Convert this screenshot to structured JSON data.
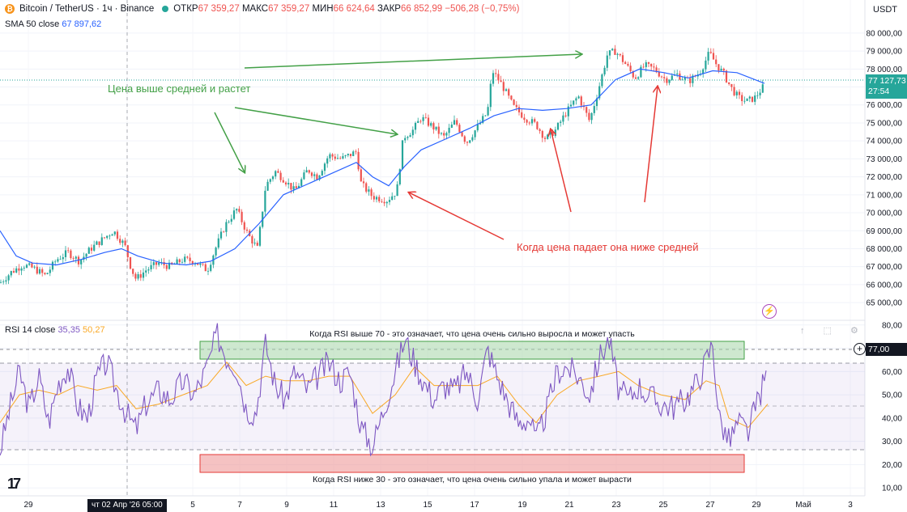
{
  "header": {
    "symbol": "Bitcoin / TetherUS · 1ч · Binance",
    "coin_icon": "bitcoin-icon",
    "open_label": "ОТКР",
    "open_value": "67 359,27",
    "high_label": "МАКС",
    "high_value": "67 359,27",
    "low_label": "МИН",
    "low_value": "66 624,64",
    "close_label": "ЗАКР",
    "close_value": "66 852,99",
    "change": "−506,28 (−0,75%)",
    "currency": "USDT"
  },
  "sma": {
    "label": "SMA 50 close",
    "value": "67 897,62"
  },
  "rsi": {
    "label": "RSI 14 close",
    "value": "35,35",
    "ma_value": "50,27"
  },
  "price_tag": {
    "price": "77 127,73",
    "countdown": "27:54"
  },
  "rsi_tag": "77,00",
  "cursor_date": "чт 02 Апр '26   05:00",
  "colors": {
    "up": "#26a69a",
    "down": "#ef5350",
    "sma": "#2962ff",
    "rsi": "#7e57c2",
    "rsi_ma": "#f9a825",
    "ann_green": "#43a047",
    "ann_red": "#e53935"
  },
  "annotations": {
    "green_text": "Цена выше средней и растет",
    "red_text": "Когда цена падает она ниже средней",
    "rsi_over": "Когда RSI выше 70 - это означает, что цена очень сильно выросла и может упасть",
    "rsi_under": "Когда RSI ниже 30 - это означает, что цена очень сильно упала и может вырасти"
  },
  "chart_data": [
    {
      "type": "candlestick",
      "ylim": [
        64600,
        80400
      ],
      "y_ticks": [
        "80 000,00",
        "79 000,00",
        "78 000,00",
        "77 000,00",
        "76 000,00",
        "75 000,00",
        "74 000,00",
        "73 000,00",
        "72 000,00",
        "71 000,00",
        "70 000,00",
        "69 000,00",
        "68 000,00",
        "67 000,00",
        "66 000,00",
        "65 000,00"
      ],
      "x_ticks": [
        "29",
        "чт 02 Апр '26   05:00",
        "5",
        "7",
        "9",
        "11",
        "13",
        "15",
        "17",
        "19",
        "21",
        "23",
        "25",
        "27",
        "29",
        "Май",
        "3"
      ],
      "close_path": [
        [
          0,
          66100
        ],
        [
          14,
          66700
        ],
        [
          28,
          67100
        ],
        [
          42,
          66900
        ],
        [
          56,
          66500
        ],
        [
          70,
          67400
        ],
        [
          84,
          67800
        ],
        [
          98,
          67300
        ],
        [
          112,
          68000
        ],
        [
          126,
          68500
        ],
        [
          140,
          69000
        ],
        [
          154,
          68200
        ],
        [
          162,
          66900
        ],
        [
          168,
          66300
        ],
        [
          180,
          66800
        ],
        [
          196,
          67200
        ],
        [
          210,
          67000
        ],
        [
          226,
          67400
        ],
        [
          240,
          67300
        ],
        [
          256,
          66800
        ],
        [
          266,
          68000
        ],
        [
          278,
          69300
        ],
        [
          292,
          70200
        ],
        [
          306,
          68800
        ],
        [
          318,
          68000
        ],
        [
          328,
          71500
        ],
        [
          340,
          72300
        ],
        [
          352,
          71800
        ],
        [
          364,
          71200
        ],
        [
          380,
          72400
        ],
        [
          392,
          72000
        ],
        [
          406,
          73200
        ],
        [
          422,
          73000
        ],
        [
          440,
          73400
        ],
        [
          446,
          71600
        ],
        [
          460,
          70900
        ],
        [
          478,
          70700
        ],
        [
          490,
          71200
        ],
        [
          498,
          74200
        ],
        [
          510,
          74600
        ],
        [
          520,
          75300
        ],
        [
          534,
          74800
        ],
        [
          548,
          74200
        ],
        [
          562,
          75100
        ],
        [
          576,
          73900
        ],
        [
          590,
          74800
        ],
        [
          602,
          75600
        ],
        [
          608,
          77900
        ],
        [
          620,
          77100
        ],
        [
          634,
          75900
        ],
        [
          648,
          75300
        ],
        [
          662,
          74900
        ],
        [
          674,
          74100
        ],
        [
          686,
          74600
        ],
        [
          698,
          75500
        ],
        [
          714,
          76500
        ],
        [
          728,
          75100
        ],
        [
          738,
          76700
        ],
        [
          750,
          78800
        ],
        [
          760,
          79000
        ],
        [
          772,
          78300
        ],
        [
          784,
          77500
        ],
        [
          796,
          78200
        ],
        [
          808,
          78000
        ],
        [
          822,
          77400
        ],
        [
          836,
          77700
        ],
        [
          850,
          77300
        ],
        [
          864,
          77800
        ],
        [
          876,
          78900
        ],
        [
          884,
          78300
        ],
        [
          894,
          77700
        ],
        [
          902,
          77000
        ],
        [
          912,
          76400
        ],
        [
          922,
          76200
        ],
        [
          932,
          76400
        ],
        [
          944,
          77100
        ]
      ],
      "sma_path": [
        [
          0,
          69000
        ],
        [
          20,
          67600
        ],
        [
          40,
          67200
        ],
        [
          70,
          67100
        ],
        [
          100,
          67400
        ],
        [
          130,
          67800
        ],
        [
          150,
          68000
        ],
        [
          170,
          67600
        ],
        [
          200,
          67200
        ],
        [
          230,
          67100
        ],
        [
          260,
          67300
        ],
        [
          290,
          68000
        ],
        [
          320,
          69400
        ],
        [
          350,
          71000
        ],
        [
          380,
          71600
        ],
        [
          410,
          72200
        ],
        [
          440,
          72800
        ],
        [
          460,
          72000
        ],
        [
          480,
          71500
        ],
        [
          500,
          72600
        ],
        [
          520,
          73500
        ],
        [
          550,
          74100
        ],
        [
          580,
          74700
        ],
        [
          610,
          75400
        ],
        [
          640,
          75800
        ],
        [
          670,
          75700
        ],
        [
          700,
          75800
        ],
        [
          730,
          76000
        ],
        [
          760,
          77400
        ],
        [
          790,
          78000
        ],
        [
          820,
          77800
        ],
        [
          850,
          77500
        ],
        [
          880,
          77900
        ],
        [
          910,
          77800
        ],
        [
          944,
          77200
        ]
      ],
      "series": [
        {
          "name": "SMA 50 close",
          "last": "67 897,62"
        }
      ]
    },
    {
      "type": "line",
      "ylim": [
        8,
        82
      ],
      "y_ticks": [
        "80,00",
        "70,00",
        "60,00",
        "50,00",
        "40,00",
        "30,00",
        "20,00",
        "10,00"
      ],
      "bands": {
        "upper": 70,
        "middle": 50,
        "lower": 30
      },
      "rsi_path": [
        [
          0,
          26
        ],
        [
          12,
          44
        ],
        [
          24,
          60
        ],
        [
          36,
          44
        ],
        [
          48,
          58
        ],
        [
          60,
          38
        ],
        [
          72,
          55
        ],
        [
          84,
          62
        ],
        [
          96,
          45
        ],
        [
          108,
          40
        ],
        [
          120,
          58
        ],
        [
          132,
          64
        ],
        [
          144,
          52
        ],
        [
          156,
          42
        ],
        [
          168,
          35
        ],
        [
          180,
          46
        ],
        [
          196,
          52
        ],
        [
          210,
          48
        ],
        [
          226,
          56
        ],
        [
          240,
          50
        ],
        [
          256,
          62
        ],
        [
          268,
          76
        ],
        [
          280,
          66
        ],
        [
          292,
          62
        ],
        [
          304,
          44
        ],
        [
          316,
          42
        ],
        [
          328,
          72
        ],
        [
          340,
          54
        ],
        [
          352,
          48
        ],
        [
          364,
          60
        ],
        [
          380,
          52
        ],
        [
          392,
          58
        ],
        [
          406,
          64
        ],
        [
          420,
          56
        ],
        [
          432,
          60
        ],
        [
          446,
          36
        ],
        [
          460,
          28
        ],
        [
          474,
          44
        ],
        [
          488,
          60
        ],
        [
          500,
          74
        ],
        [
          512,
          64
        ],
        [
          524,
          55
        ],
        [
          536,
          48
        ],
        [
          548,
          54
        ],
        [
          562,
          52
        ],
        [
          576,
          60
        ],
        [
          590,
          48
        ],
        [
          602,
          70
        ],
        [
          614,
          58
        ],
        [
          626,
          48
        ],
        [
          640,
          38
        ],
        [
          654,
          40
        ],
        [
          662,
          30
        ],
        [
          674,
          42
        ],
        [
          688,
          60
        ],
        [
          700,
          62
        ],
        [
          714,
          58
        ],
        [
          728,
          50
        ],
        [
          740,
          66
        ],
        [
          752,
          74
        ],
        [
          764,
          52
        ],
        [
          776,
          48
        ],
        [
          788,
          54
        ],
        [
          800,
          50
        ],
        [
          816,
          46
        ],
        [
          832,
          45
        ],
        [
          846,
          48
        ],
        [
          862,
          56
        ],
        [
          880,
          72
        ],
        [
          888,
          40
        ],
        [
          900,
          30
        ],
        [
          912,
          38
        ],
        [
          924,
          34
        ],
        [
          936,
          48
        ],
        [
          948,
          60
        ]
      ],
      "ma_path": [
        [
          0,
          38
        ],
        [
          24,
          50
        ],
        [
          48,
          52
        ],
        [
          72,
          50
        ],
        [
          96,
          54
        ],
        [
          120,
          52
        ],
        [
          144,
          54
        ],
        [
          168,
          44
        ],
        [
          196,
          46
        ],
        [
          226,
          50
        ],
        [
          256,
          54
        ],
        [
          280,
          64
        ],
        [
          304,
          54
        ],
        [
          328,
          58
        ],
        [
          352,
          56
        ],
        [
          380,
          56
        ],
        [
          406,
          58
        ],
        [
          432,
          58
        ],
        [
          460,
          42
        ],
        [
          488,
          50
        ],
        [
          512,
          62
        ],
        [
          536,
          54
        ],
        [
          562,
          54
        ],
        [
          590,
          54
        ],
        [
          614,
          58
        ],
        [
          640,
          46
        ],
        [
          662,
          38
        ],
        [
          688,
          50
        ],
        [
          714,
          56
        ],
        [
          740,
          58
        ],
        [
          764,
          60
        ],
        [
          788,
          54
        ],
        [
          816,
          50
        ],
        [
          846,
          48
        ],
        [
          872,
          56
        ],
        [
          888,
          54
        ],
        [
          900,
          40
        ],
        [
          924,
          36
        ],
        [
          948,
          46
        ]
      ],
      "series": [
        {
          "name": "RSI 14 close",
          "last": "35,35"
        },
        {
          "name": "",
          "last": "50,27"
        }
      ]
    }
  ]
}
